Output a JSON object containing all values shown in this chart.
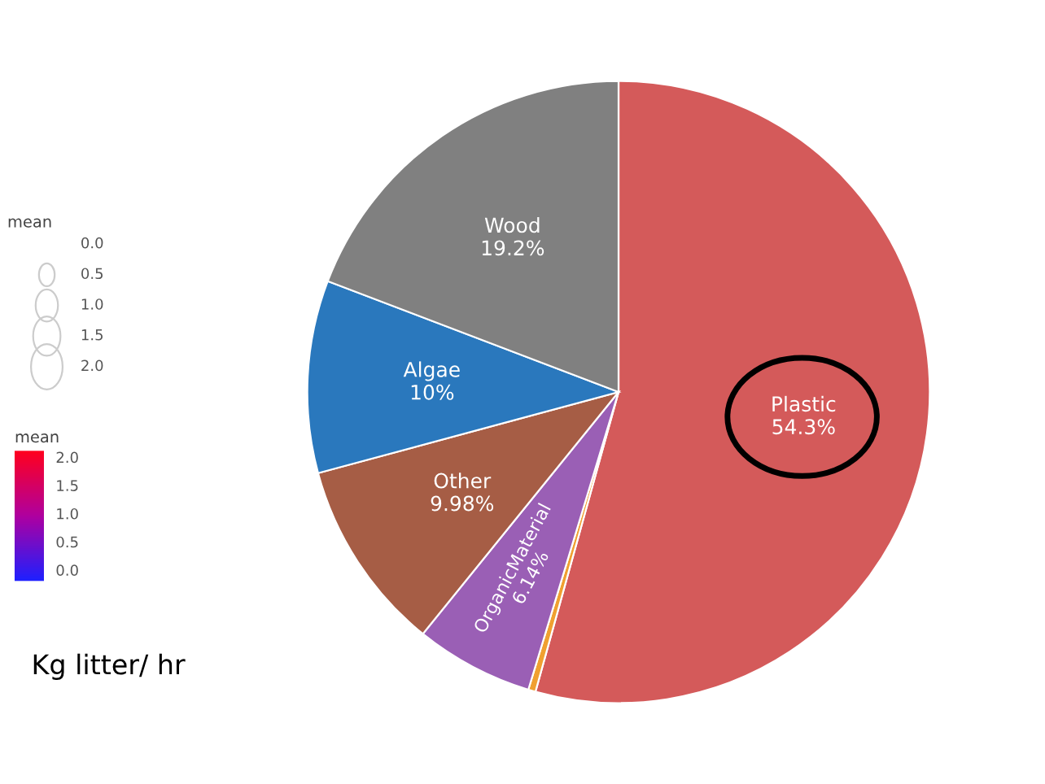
{
  "chart_data": {
    "type": "pie",
    "categories": [
      "Plastic",
      null,
      "OrganicMaterial",
      "Other",
      "Algae",
      "Wood"
    ],
    "values": [
      54.3,
      0.38,
      6.14,
      9.98,
      10,
      19.2
    ],
    "colors": [
      "#d45a5a",
      "#f0a030",
      "#9a5fb5",
      "#a65d45",
      "#2a78bd",
      "#808080"
    ],
    "value_labels": [
      "54.3%",
      null,
      "6.14%",
      "9.98%",
      "10%",
      "19.2%"
    ],
    "legend_title": "mean",
    "clabel": "mean",
    "annotations": [
      "0.0",
      "0.5",
      "1.0",
      "1.5",
      "2.0",
      "2.0",
      "1.5",
      "1.0",
      "0.5",
      "0.0",
      "Kg litter/ hr"
    ]
  }
}
